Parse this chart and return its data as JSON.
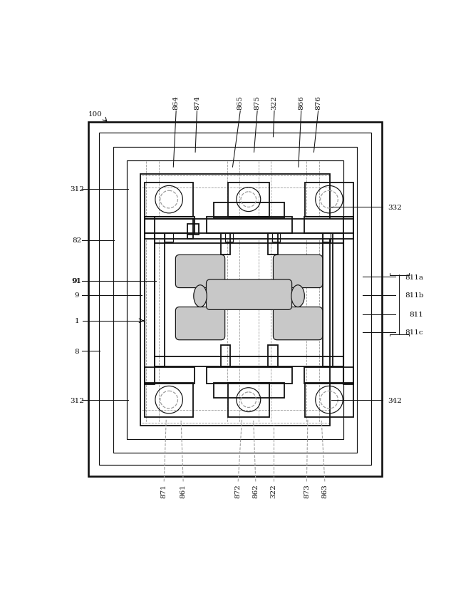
{
  "bg": "#ffffff",
  "lc": "#111111",
  "dc": "#999999",
  "shade": "#c8c8c8",
  "fs": 7.5,
  "figsize": [
    6.4,
    8.37
  ],
  "dpi": 100,
  "top_labels": [
    [
      "864",
      215,
      73,
      210,
      175
    ],
    [
      "874",
      253,
      73,
      250,
      148
    ],
    [
      "865",
      332,
      73,
      318,
      175
    ],
    [
      "875",
      363,
      73,
      357,
      148
    ],
    [
      "322",
      394,
      73,
      392,
      120
    ],
    [
      "866",
      443,
      73,
      438,
      175
    ],
    [
      "876",
      474,
      73,
      466,
      148
    ]
  ],
  "left_labels": [
    [
      "312",
      25,
      215,
      128,
      215
    ],
    [
      "82",
      25,
      308,
      102,
      308
    ],
    [
      "91",
      25,
      382,
      178,
      382
    ],
    [
      "9",
      25,
      408,
      152,
      408
    ],
    [
      "8",
      25,
      510,
      76,
      510
    ],
    [
      "312",
      25,
      600,
      128,
      600
    ]
  ],
  "right_labels": [
    [
      "332",
      610,
      248,
      498,
      248
    ],
    [
      "342",
      610,
      600,
      498,
      600
    ]
  ],
  "bot_labels": [
    [
      "871",
      193,
      748,
      197,
      633
    ],
    [
      "861",
      228,
      748,
      224,
      637
    ],
    [
      "872",
      328,
      748,
      335,
      633
    ],
    [
      "862",
      360,
      748,
      356,
      637
    ],
    [
      "322",
      393,
      748,
      393,
      645
    ],
    [
      "873",
      453,
      748,
      455,
      633
    ],
    [
      "863",
      486,
      748,
      480,
      637
    ]
  ]
}
